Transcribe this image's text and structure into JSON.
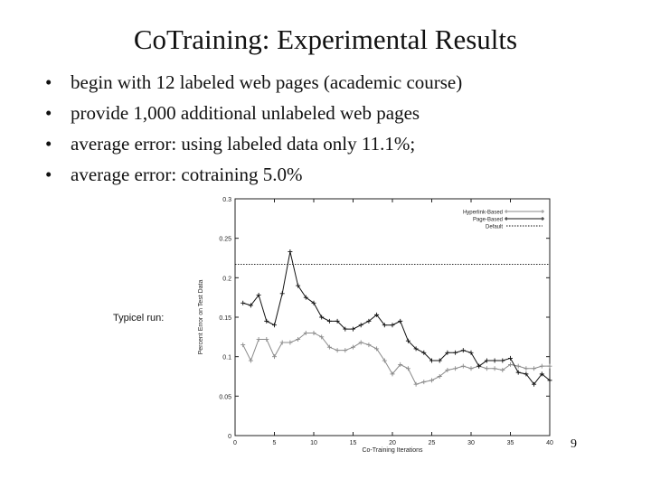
{
  "slide": {
    "title": "CoTraining: Experimental Results",
    "bullets": [
      "begin with 12 labeled web pages (academic course)",
      "provide 1,000 additional unlabeled web pages",
      "average error: using labeled data only 11.1%;",
      "average error: cotraining 5.0%"
    ],
    "bullet_symbol": "•",
    "side_label": "Typicel run:",
    "page_number": "9"
  },
  "chart_data": {
    "type": "line",
    "xlabel": "Co-Training Iterations",
    "ylabel": "Percent Error on Test Data",
    "xlim": [
      0,
      40
    ],
    "ylim": [
      0,
      0.3
    ],
    "xticks": [
      0,
      5,
      10,
      15,
      20,
      25,
      30,
      35,
      40
    ],
    "xtick_labels": [
      "0",
      "5",
      "10",
      "15",
      "20",
      "25",
      "30",
      "35",
      "40"
    ],
    "yticks": [
      0,
      0.05,
      0.1,
      0.15,
      0.2,
      0.25,
      0.3
    ],
    "ytick_labels": [
      "0",
      "0.05",
      "0.1",
      "0.15",
      "0.2",
      "0.25",
      "0.3"
    ],
    "legend_position": "top-right",
    "grid": false,
    "series": [
      {
        "name": "Hyperlink-Based",
        "color": "#8a8a8a",
        "style": "solid",
        "marker": "plus",
        "x": [
          1,
          2,
          3,
          4,
          5,
          6,
          7,
          8,
          9,
          10,
          11,
          12,
          13,
          14,
          15,
          16,
          17,
          18,
          19,
          20,
          21,
          22,
          23,
          24,
          25,
          26,
          27,
          28,
          29,
          30,
          31,
          32,
          33,
          34,
          35,
          36,
          37,
          38,
          39,
          40
        ],
        "y": [
          0.115,
          0.095,
          0.122,
          0.122,
          0.1,
          0.118,
          0.118,
          0.122,
          0.13,
          0.13,
          0.125,
          0.112,
          0.108,
          0.108,
          0.112,
          0.118,
          0.115,
          0.11,
          0.095,
          0.078,
          0.09,
          0.085,
          0.065,
          0.068,
          0.07,
          0.075,
          0.083,
          0.085,
          0.088,
          0.085,
          0.088,
          0.085,
          0.085,
          0.083,
          0.09,
          0.088,
          0.085,
          0.085,
          0.088,
          0.088
        ]
      },
      {
        "name": "Page-Based",
        "color": "#111111",
        "style": "solid",
        "marker": "plus",
        "x": [
          1,
          2,
          3,
          4,
          5,
          6,
          7,
          8,
          9,
          10,
          11,
          12,
          13,
          14,
          15,
          16,
          17,
          18,
          19,
          20,
          21,
          22,
          23,
          24,
          25,
          26,
          27,
          28,
          29,
          30,
          31,
          32,
          33,
          34,
          35,
          36,
          37,
          38,
          39,
          40
        ],
        "y": [
          0.168,
          0.165,
          0.178,
          0.145,
          0.14,
          0.18,
          0.233,
          0.19,
          0.175,
          0.168,
          0.15,
          0.145,
          0.145,
          0.135,
          0.135,
          0.14,
          0.145,
          0.153,
          0.14,
          0.14,
          0.145,
          0.12,
          0.11,
          0.105,
          0.095,
          0.095,
          0.105,
          0.105,
          0.108,
          0.105,
          0.088,
          0.095,
          0.095,
          0.095,
          0.098,
          0.08,
          0.078,
          0.065,
          0.078,
          0.07
        ]
      },
      {
        "name": "Default",
        "color": "#111111",
        "style": "dotted",
        "marker": "none",
        "x": [
          0,
          40
        ],
        "y": [
          0.217,
          0.217
        ]
      }
    ]
  }
}
